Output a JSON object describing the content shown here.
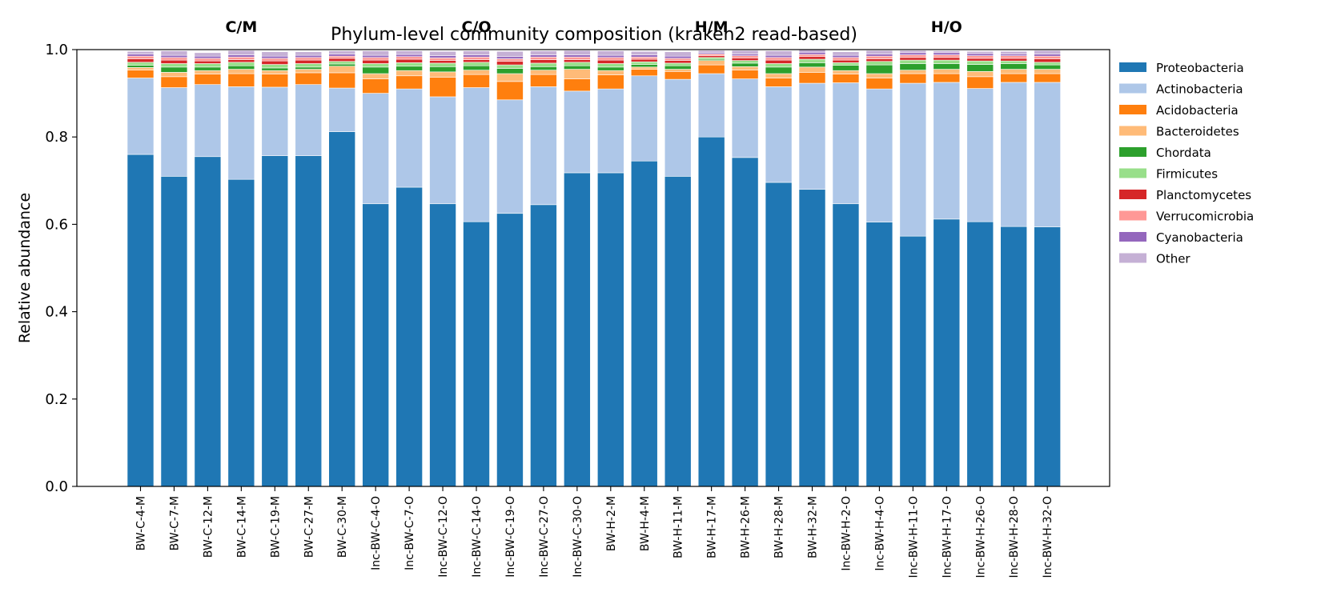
{
  "chart_data": {
    "type": "bar",
    "stacked": true,
    "title": "Phylum-level community composition (kraken2 read-based)",
    "xlabel": "",
    "ylabel": "Relative abundance",
    "ylim": [
      0,
      1.0
    ],
    "yticks": [
      "0.0",
      "0.2",
      "0.4",
      "0.6",
      "0.8",
      "1.0"
    ],
    "grid": false,
    "legend_position": "right",
    "groups": [
      {
        "label": "C/M",
        "samples": [
          "BW-C-4-M",
          "BW-C-7-M",
          "BW-C-12-M",
          "BW-C-14-M",
          "BW-C-19-M",
          "BW-C-27-M",
          "BW-C-30-M"
        ]
      },
      {
        "label": "C/O",
        "samples": [
          "Inc-BW-C-4-O",
          "Inc-BW-C-7-O",
          "Inc-BW-C-12-O",
          "Inc-BW-C-14-O",
          "Inc-BW-C-19-O",
          "Inc-BW-C-27-O",
          "Inc-BW-C-30-O"
        ]
      },
      {
        "label": "H/M",
        "samples": [
          "BW-H-2-M",
          "BW-H-4-M",
          "BW-H-11-M",
          "BW-H-17-M",
          "BW-H-26-M",
          "BW-H-28-M",
          "BW-H-32-M"
        ]
      },
      {
        "label": "H/O",
        "samples": [
          "Inc-BW-H-2-O",
          "Inc-BW-H-4-O",
          "Inc-BW-H-11-O",
          "Inc-BW-H-17-O",
          "Inc-BW-H-26-O",
          "Inc-BW-H-28-O",
          "Inc-BW-H-32-O"
        ]
      }
    ],
    "categories": [
      "BW-C-4-M",
      "BW-C-7-M",
      "BW-C-12-M",
      "BW-C-14-M",
      "BW-C-19-M",
      "BW-C-27-M",
      "BW-C-30-M",
      "Inc-BW-C-4-O",
      "Inc-BW-C-7-O",
      "Inc-BW-C-12-O",
      "Inc-BW-C-14-O",
      "Inc-BW-C-19-O",
      "Inc-BW-C-27-O",
      "Inc-BW-C-30-O",
      "BW-H-2-M",
      "BW-H-4-M",
      "BW-H-11-M",
      "BW-H-17-M",
      "BW-H-26-M",
      "BW-H-28-M",
      "BW-H-32-M",
      "Inc-BW-H-2-O",
      "Inc-BW-H-4-O",
      "Inc-BW-H-11-O",
      "Inc-BW-H-17-O",
      "Inc-BW-H-26-O",
      "Inc-BW-H-28-O",
      "Inc-BW-H-32-O"
    ],
    "series": [
      {
        "name": "Proteobacteria",
        "color": "#1f77b4",
        "values": [
          0.76,
          0.71,
          0.755,
          0.703,
          0.757,
          0.757,
          0.812,
          0.647,
          0.685,
          0.647,
          0.606,
          0.625,
          0.645,
          0.718,
          0.718,
          0.745,
          0.71,
          0.8,
          0.753,
          0.696,
          0.68,
          0.647,
          0.605,
          0.573,
          0.612,
          0.606,
          0.595,
          0.594
        ]
      },
      {
        "name": "Actinobacteria",
        "color": "#aec7e8",
        "values": [
          0.175,
          0.203,
          0.165,
          0.212,
          0.157,
          0.163,
          0.1,
          0.253,
          0.225,
          0.245,
          0.307,
          0.26,
          0.27,
          0.187,
          0.192,
          0.195,
          0.222,
          0.145,
          0.18,
          0.219,
          0.243,
          0.277,
          0.305,
          0.35,
          0.313,
          0.305,
          0.33,
          0.331
        ]
      },
      {
        "name": "Acidobacteria",
        "color": "#ff7f0e",
        "values": [
          0.018,
          0.025,
          0.024,
          0.03,
          0.03,
          0.027,
          0.035,
          0.033,
          0.03,
          0.045,
          0.03,
          0.042,
          0.028,
          0.028,
          0.032,
          0.015,
          0.018,
          0.02,
          0.02,
          0.02,
          0.025,
          0.02,
          0.025,
          0.022,
          0.02,
          0.027,
          0.02,
          0.02
        ]
      },
      {
        "name": "Bacteroidetes",
        "color": "#ffbb78",
        "values": [
          0.006,
          0.01,
          0.008,
          0.01,
          0.008,
          0.008,
          0.015,
          0.012,
          0.012,
          0.012,
          0.01,
          0.018,
          0.01,
          0.022,
          0.01,
          0.005,
          0.005,
          0.01,
          0.008,
          0.01,
          0.012,
          0.008,
          0.01,
          0.008,
          0.01,
          0.012,
          0.01,
          0.01
        ]
      },
      {
        "name": "Chordata",
        "color": "#2ca02c",
        "values": [
          0.005,
          0.012,
          0.008,
          0.008,
          0.006,
          0.005,
          0.005,
          0.015,
          0.01,
          0.012,
          0.01,
          0.012,
          0.008,
          0.008,
          0.008,
          0.006,
          0.008,
          0.003,
          0.008,
          0.015,
          0.01,
          0.012,
          0.02,
          0.015,
          0.013,
          0.016,
          0.013,
          0.01
        ]
      },
      {
        "name": "Firmicutes",
        "color": "#98df8a",
        "values": [
          0.007,
          0.008,
          0.008,
          0.008,
          0.008,
          0.008,
          0.006,
          0.008,
          0.008,
          0.008,
          0.008,
          0.008,
          0.008,
          0.008,
          0.008,
          0.006,
          0.006,
          0.004,
          0.006,
          0.008,
          0.008,
          0.006,
          0.008,
          0.008,
          0.008,
          0.008,
          0.006,
          0.006
        ]
      },
      {
        "name": "Planctomycetes",
        "color": "#d62728",
        "values": [
          0.008,
          0.008,
          0.006,
          0.006,
          0.008,
          0.008,
          0.007,
          0.008,
          0.008,
          0.006,
          0.006,
          0.008,
          0.008,
          0.006,
          0.008,
          0.006,
          0.006,
          0.004,
          0.006,
          0.008,
          0.006,
          0.006,
          0.006,
          0.006,
          0.006,
          0.006,
          0.006,
          0.008
        ]
      },
      {
        "name": "Verrucomicrobia",
        "color": "#ff9896",
        "values": [
          0.006,
          0.006,
          0.006,
          0.006,
          0.006,
          0.006,
          0.005,
          0.006,
          0.006,
          0.006,
          0.006,
          0.006,
          0.006,
          0.006,
          0.006,
          0.005,
          0.005,
          0.004,
          0.005,
          0.006,
          0.005,
          0.006,
          0.006,
          0.006,
          0.006,
          0.006,
          0.006,
          0.006
        ]
      },
      {
        "name": "Cyanobacteria",
        "color": "#9467bd",
        "values": [
          0.005,
          0.005,
          0.005,
          0.005,
          0.005,
          0.005,
          0.005,
          0.005,
          0.005,
          0.005,
          0.005,
          0.005,
          0.005,
          0.005,
          0.005,
          0.005,
          0.005,
          0.003,
          0.004,
          0.005,
          0.005,
          0.005,
          0.005,
          0.005,
          0.005,
          0.005,
          0.004,
          0.005
        ]
      },
      {
        "name": "Other",
        "color": "#c5b0d5",
        "values": [
          0.006,
          0.01,
          0.008,
          0.01,
          0.01,
          0.008,
          0.007,
          0.01,
          0.008,
          0.01,
          0.009,
          0.012,
          0.009,
          0.01,
          0.01,
          0.008,
          0.01,
          0.005,
          0.008,
          0.01,
          0.006,
          0.008,
          0.008,
          0.005,
          0.004,
          0.005,
          0.006,
          0.008
        ]
      }
    ]
  }
}
